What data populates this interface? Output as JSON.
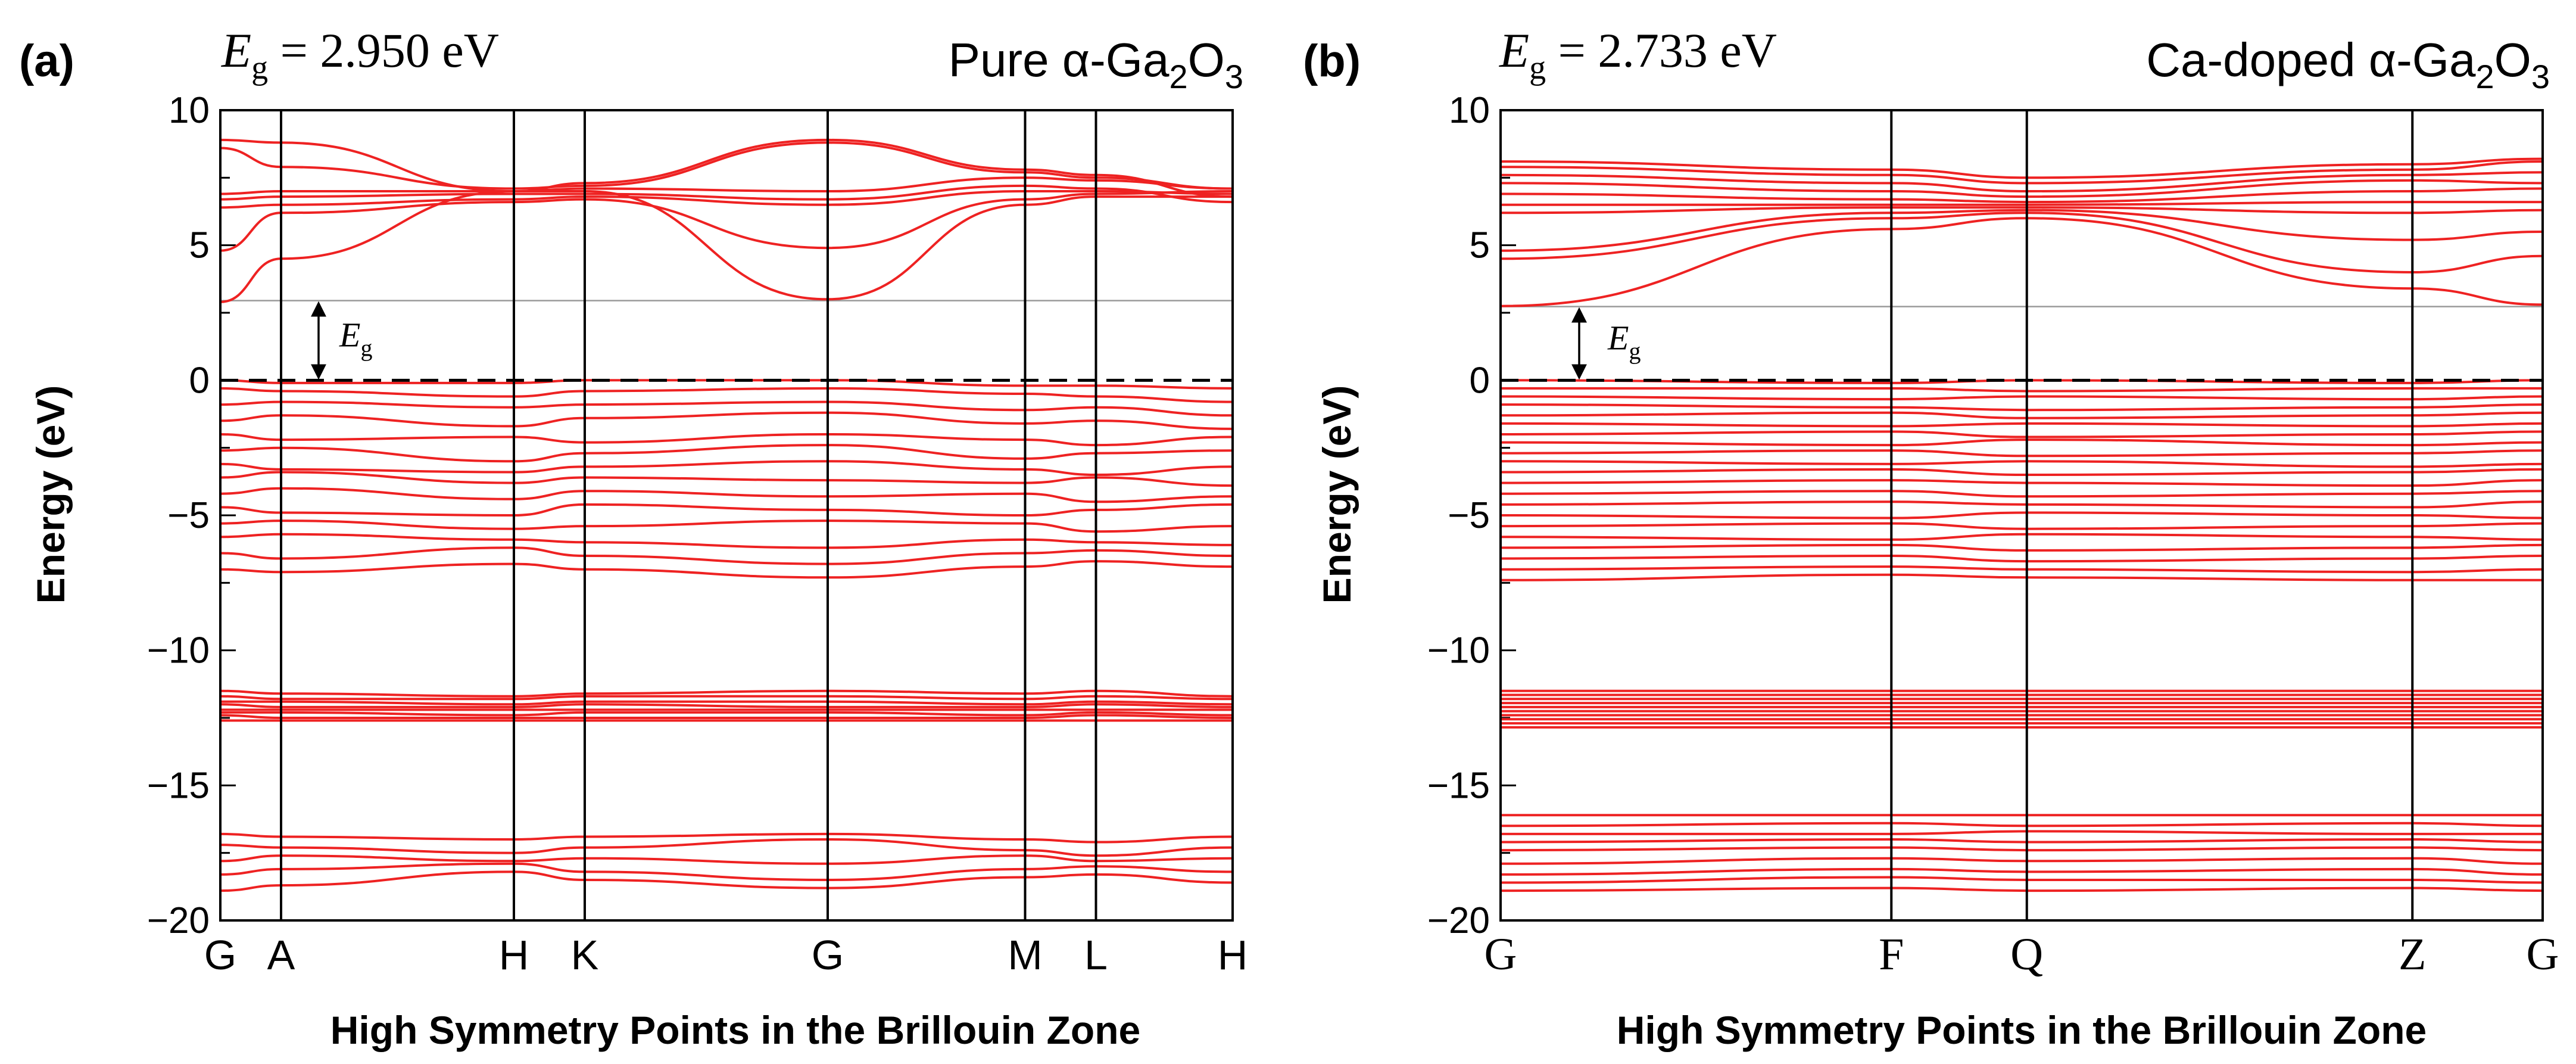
{
  "chart_data": [
    {
      "type": "line",
      "panel_label": "(a)",
      "band_gap": {
        "symbol": "E",
        "subscript": "g",
        "value_text": " = 2.950 eV",
        "value": 2.95
      },
      "material": {
        "prefix": "Pure α-Ga",
        "sub1": "2",
        "mid": "O",
        "sub2": "3"
      },
      "eg_marker": {
        "symbol": "E",
        "subscript": "g"
      },
      "xlabel": "High Symmetry Points in the Brillouin Zone",
      "ylabel": "Energy (eV)",
      "ylim": [
        -20,
        10
      ],
      "yticks": [
        10,
        5,
        0,
        -5,
        -10,
        -15,
        -20
      ],
      "ytick_labels": [
        "10",
        "5",
        "0",
        "−5",
        "−10",
        "−15",
        "−20"
      ],
      "kpoints": [
        {
          "label": "G",
          "pos": 0
        },
        {
          "label": "A",
          "pos": 0.06
        },
        {
          "label": "H",
          "pos": 0.29
        },
        {
          "label": "K",
          "pos": 0.36
        },
        {
          "label": "G",
          "pos": 0.6
        },
        {
          "label": "M",
          "pos": 0.795
        },
        {
          "label": "L",
          "pos": 0.865
        },
        {
          "label": "H",
          "pos": 1
        }
      ],
      "fermi_level": 0,
      "cbm": 2.95,
      "line_color": "#ee2222",
      "bands": {
        "conduction": [
          [
            2.9,
            4.5,
            7.0,
            7.0,
            3.0,
            6.5,
            6.8,
            6.8
          ],
          [
            4.8,
            6.2,
            6.6,
            6.7,
            4.9,
            6.7,
            6.9,
            7.0
          ],
          [
            6.4,
            6.5,
            6.7,
            6.8,
            6.5,
            7.0,
            7.0,
            6.9
          ],
          [
            6.7,
            6.8,
            6.9,
            6.9,
            6.7,
            7.2,
            7.1,
            6.6
          ],
          [
            6.9,
            7.0,
            7.0,
            7.1,
            7.0,
            7.5,
            7.4,
            7.1
          ],
          [
            8.6,
            7.9,
            7.1,
            7.2,
            8.8,
            7.7,
            7.5,
            7.1
          ],
          [
            8.9,
            8.8,
            7.0,
            7.3,
            8.9,
            7.8,
            7.6,
            6.8
          ]
        ],
        "valence": [
          [
            0,
            -0.1,
            -0.1,
            0,
            0,
            -0.2,
            -0.2,
            -0.3
          ],
          [
            -0.3,
            -0.4,
            -0.6,
            -0.4,
            -0.3,
            -0.5,
            -0.6,
            -0.8
          ],
          [
            -0.9,
            -0.8,
            -1.0,
            -0.9,
            -0.8,
            -1.1,
            -1.0,
            -1.3
          ],
          [
            -1.5,
            -1.3,
            -1.7,
            -1.4,
            -1.2,
            -1.6,
            -1.5,
            -1.8
          ],
          [
            -2.0,
            -2.2,
            -2.1,
            -2.3,
            -2.0,
            -2.2,
            -2.4,
            -2.1
          ],
          [
            -2.6,
            -2.5,
            -3.0,
            -2.7,
            -2.4,
            -2.9,
            -2.7,
            -2.6
          ],
          [
            -3.1,
            -3.3,
            -3.4,
            -3.2,
            -3.0,
            -3.3,
            -3.5,
            -3.2
          ],
          [
            -3.6,
            -3.4,
            -3.8,
            -3.6,
            -3.7,
            -3.8,
            -3.6,
            -3.9
          ],
          [
            -4.2,
            -4.0,
            -4.4,
            -4.1,
            -4.3,
            -4.2,
            -4.5,
            -4.3
          ],
          [
            -4.7,
            -4.9,
            -5.0,
            -4.6,
            -4.8,
            -5.0,
            -4.8,
            -4.6
          ],
          [
            -5.3,
            -5.2,
            -5.5,
            -5.4,
            -5.2,
            -5.3,
            -5.6,
            -5.4
          ],
          [
            -5.8,
            -5.7,
            -5.9,
            -6.0,
            -6.2,
            -5.9,
            -6.0,
            -6.1
          ],
          [
            -6.4,
            -6.6,
            -6.2,
            -6.5,
            -6.8,
            -6.4,
            -6.3,
            -6.5
          ],
          [
            -7.0,
            -7.1,
            -6.8,
            -7.0,
            -7.3,
            -6.9,
            -6.7,
            -6.9
          ]
        ],
        "ga3d": [
          [
            -11.5,
            -11.6,
            -11.7,
            -11.6,
            -11.5,
            -11.6,
            -11.5,
            -11.7
          ],
          [
            -11.7,
            -11.8,
            -11.8,
            -11.7,
            -11.7,
            -11.8,
            -11.7,
            -11.8
          ],
          [
            -11.9,
            -11.9,
            -12.0,
            -11.9,
            -11.9,
            -12.0,
            -11.9,
            -12.0
          ],
          [
            -12.0,
            -12.1,
            -12.1,
            -12.0,
            -12.1,
            -12.1,
            -12.0,
            -12.1
          ],
          [
            -12.2,
            -12.2,
            -12.2,
            -12.2,
            -12.2,
            -12.2,
            -12.2,
            -12.2
          ],
          [
            -12.3,
            -12.3,
            -12.4,
            -12.3,
            -12.3,
            -12.4,
            -12.3,
            -12.4
          ],
          [
            -12.4,
            -12.5,
            -12.5,
            -12.5,
            -12.5,
            -12.5,
            -12.4,
            -12.5
          ],
          [
            -12.6,
            -12.6,
            -12.6,
            -12.6,
            -12.6,
            -12.6,
            -12.6,
            -12.6
          ]
        ],
        "o2s": [
          [
            -16.8,
            -16.9,
            -17.0,
            -16.9,
            -16.8,
            -17.0,
            -17.1,
            -16.9
          ],
          [
            -17.2,
            -17.3,
            -17.5,
            -17.3,
            -17.0,
            -17.4,
            -17.6,
            -17.3
          ],
          [
            -17.8,
            -17.6,
            -17.8,
            -17.7,
            -17.9,
            -17.6,
            -17.8,
            -17.7
          ],
          [
            -18.3,
            -18.1,
            -17.9,
            -18.2,
            -18.5,
            -18.1,
            -18.0,
            -18.2
          ],
          [
            -18.9,
            -18.7,
            -18.2,
            -18.5,
            -18.8,
            -18.4,
            -18.3,
            -18.6
          ]
        ]
      }
    },
    {
      "type": "line",
      "panel_label": "(b)",
      "band_gap": {
        "symbol": "E",
        "subscript": "g",
        "value_text": " = 2.733 eV",
        "value": 2.733
      },
      "material": {
        "prefix": "Ca-doped α-Ga",
        "sub1": "2",
        "mid": "O",
        "sub2": "3"
      },
      "eg_marker": {
        "symbol": "E",
        "subscript": "g"
      },
      "xlabel": "High Symmetry Points in the Brillouin Zone",
      "ylabel": "Energy (eV)",
      "ylim": [
        -20,
        10
      ],
      "yticks": [
        10,
        5,
        0,
        -5,
        -10,
        -15,
        -20
      ],
      "ytick_labels": [
        "10",
        "5",
        "0",
        "−5",
        "−10",
        "−15",
        "−20"
      ],
      "kpoints": [
        {
          "label": "G",
          "pos": 0
        },
        {
          "label": "F",
          "pos": 0.375
        },
        {
          "label": "Q",
          "pos": 0.505
        },
        {
          "label": "Z",
          "pos": 0.875
        },
        {
          "label": "G",
          "pos": 1
        }
      ],
      "fermi_level": 0,
      "cbm": 2.73,
      "line_color": "#ee2222",
      "bands": {
        "conduction": [
          [
            2.75,
            5.6,
            6.0,
            3.4,
            2.8
          ],
          [
            4.5,
            6.0,
            6.2,
            4.0,
            4.6
          ],
          [
            4.8,
            6.2,
            6.3,
            5.2,
            5.5
          ],
          [
            6.2,
            6.4,
            6.4,
            6.2,
            6.3
          ],
          [
            6.5,
            6.5,
            6.5,
            6.6,
            6.6
          ],
          [
            6.9,
            6.7,
            6.6,
            7.0,
            7.1
          ],
          [
            7.3,
            7.0,
            6.8,
            7.4,
            7.3
          ],
          [
            7.6,
            7.3,
            7.0,
            7.6,
            7.7
          ],
          [
            7.9,
            7.6,
            7.3,
            7.8,
            8.1
          ],
          [
            8.1,
            7.8,
            7.5,
            8.0,
            8.2
          ]
        ],
        "valence": [
          [
            0,
            -0.1,
            0,
            -0.1,
            0
          ],
          [
            -0.3,
            -0.3,
            -0.4,
            -0.3,
            -0.3
          ],
          [
            -0.6,
            -0.7,
            -0.6,
            -0.7,
            -0.6
          ],
          [
            -0.9,
            -1.0,
            -1.1,
            -1.0,
            -0.9
          ],
          [
            -1.3,
            -1.2,
            -1.4,
            -1.3,
            -1.2
          ],
          [
            -1.6,
            -1.7,
            -1.6,
            -1.7,
            -1.6
          ],
          [
            -2.0,
            -1.9,
            -2.1,
            -2.0,
            -1.9
          ],
          [
            -2.3,
            -2.4,
            -2.2,
            -2.4,
            -2.3
          ],
          [
            -2.7,
            -2.6,
            -2.8,
            -2.7,
            -2.6
          ],
          [
            -3.0,
            -3.1,
            -3.0,
            -3.2,
            -3.1
          ],
          [
            -3.4,
            -3.3,
            -3.5,
            -3.4,
            -3.3
          ],
          [
            -3.8,
            -3.7,
            -3.8,
            -3.9,
            -3.7
          ],
          [
            -4.2,
            -4.1,
            -4.3,
            -4.2,
            -4.1
          ],
          [
            -4.6,
            -4.5,
            -4.6,
            -4.7,
            -4.5
          ],
          [
            -5.0,
            -5.1,
            -4.9,
            -5.0,
            -5.1
          ],
          [
            -5.4,
            -5.3,
            -5.5,
            -5.4,
            -5.3
          ],
          [
            -5.8,
            -5.9,
            -5.7,
            -5.8,
            -5.9
          ],
          [
            -6.2,
            -6.1,
            -6.3,
            -6.2,
            -6.1
          ],
          [
            -6.6,
            -6.5,
            -6.7,
            -6.6,
            -6.5
          ],
          [
            -7.0,
            -6.9,
            -7.0,
            -7.1,
            -7.0
          ],
          [
            -7.4,
            -7.2,
            -7.3,
            -7.4,
            -7.4
          ]
        ],
        "ga3d": [
          [
            -11.5,
            -11.5,
            -11.5,
            -11.5,
            -11.5
          ],
          [
            -11.65,
            -11.65,
            -11.65,
            -11.65,
            -11.65
          ],
          [
            -11.8,
            -11.8,
            -11.8,
            -11.8,
            -11.8
          ],
          [
            -11.95,
            -11.95,
            -11.95,
            -11.95,
            -11.95
          ],
          [
            -12.1,
            -12.1,
            -12.1,
            -12.1,
            -12.1
          ],
          [
            -12.25,
            -12.25,
            -12.25,
            -12.25,
            -12.25
          ],
          [
            -12.4,
            -12.4,
            -12.4,
            -12.4,
            -12.4
          ],
          [
            -12.55,
            -12.55,
            -12.55,
            -12.55,
            -12.55
          ],
          [
            -12.7,
            -12.7,
            -12.7,
            -12.7,
            -12.7
          ],
          [
            -12.85,
            -12.85,
            -12.85,
            -12.85,
            -12.85
          ]
        ],
        "o2s": [
          [
            -16.1,
            -16.1,
            -16.1,
            -16.1,
            -16.1
          ],
          [
            -16.5,
            -16.4,
            -16.5,
            -16.4,
            -16.5
          ],
          [
            -16.8,
            -16.8,
            -16.7,
            -16.8,
            -16.8
          ],
          [
            -17.1,
            -17.0,
            -17.1,
            -17.0,
            -17.1
          ],
          [
            -17.4,
            -17.3,
            -17.4,
            -17.3,
            -17.4
          ],
          [
            -17.9,
            -17.7,
            -17.8,
            -17.7,
            -17.9
          ],
          [
            -18.3,
            -18.1,
            -18.2,
            -18.1,
            -18.3
          ],
          [
            -18.6,
            -18.4,
            -18.5,
            -18.5,
            -18.6
          ],
          [
            -18.9,
            -18.8,
            -18.9,
            -18.8,
            -18.9
          ]
        ]
      }
    }
  ]
}
